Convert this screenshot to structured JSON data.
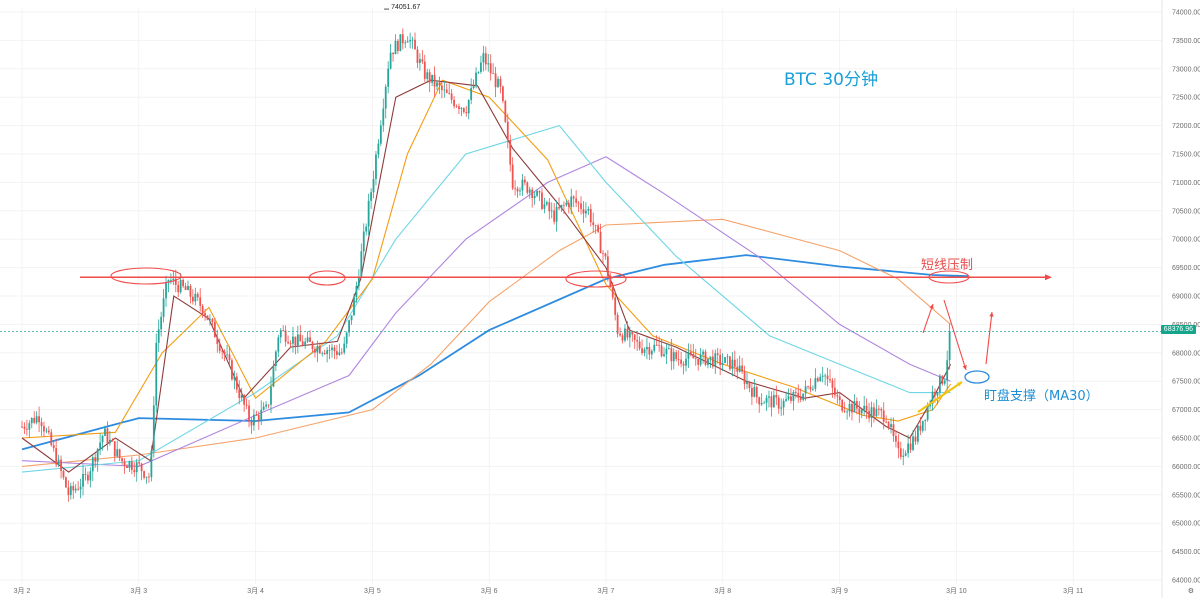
{
  "chart_data": {
    "type": "candlestick",
    "symbol_note": "BTC   30分钟",
    "x_ticks": [
      "3月 2",
      "3月 3",
      "3月 4",
      "3月 5",
      "3月 6",
      "3月 7",
      "3月 8",
      "3月 9",
      "3月 10",
      "3月 11"
    ],
    "y_ticks": [
      64000,
      64500,
      65000,
      65500,
      66000,
      66500,
      67000,
      67500,
      68000,
      68500,
      69000,
      69500,
      70000,
      70500,
      71000,
      71500,
      72000,
      72500,
      73000,
      73500,
      74000
    ],
    "y_tick_labels": [
      "64000.00",
      "64500.00",
      "65000.00",
      "65500.00",
      "66000.00",
      "66500.00",
      "67000.00",
      "67500.00",
      "68000.00",
      "68500.00",
      "69000.00",
      "69500.00",
      "70000.00",
      "70500.00",
      "71000.00",
      "71500.00",
      "72000.00",
      "72500.00",
      "73000.00",
      "73500.00",
      "74000.00"
    ],
    "ylim": [
      63950,
      74150
    ],
    "xlim": [
      0,
      10
    ],
    "high_marker": {
      "label": "74051.67",
      "x": 3.1,
      "y": 74051.67
    },
    "last_price": {
      "label": "68376.96",
      "y": 68376.96
    },
    "resistance": {
      "y": 69330,
      "label": "短线压制"
    },
    "support_label": "盯盘支撑（MA30）",
    "colors": {
      "up": "#26a69a",
      "down": "#ef5350",
      "ma_dark": "#8e3a3a",
      "ma_orange": "#f39c12",
      "ma_cyan": "#6fd6e6",
      "ma_purple": "#b185e0",
      "ma_peach": "#f5a36b",
      "ma_blue": "#2e8ce0",
      "resistance": "#f04a4a",
      "support_arrow": "#f2c40f",
      "support_circle": "#2e8ce0"
    },
    "price_path": [
      [
        0.0,
        66700
      ],
      [
        0.15,
        66900
      ],
      [
        0.3,
        66100
      ],
      [
        0.4,
        65500
      ],
      [
        0.55,
        65800
      ],
      [
        0.7,
        66600
      ],
      [
        0.85,
        66100
      ],
      [
        1.0,
        66000
      ],
      [
        1.1,
        65800
      ],
      [
        1.15,
        68200
      ],
      [
        1.25,
        69300
      ],
      [
        1.4,
        69100
      ],
      [
        1.55,
        68800
      ],
      [
        1.75,
        67900
      ],
      [
        1.95,
        66800
      ],
      [
        2.1,
        67000
      ],
      [
        2.2,
        68400
      ],
      [
        2.35,
        68200
      ],
      [
        2.55,
        68100
      ],
      [
        2.75,
        68000
      ],
      [
        2.85,
        69000
      ],
      [
        3.0,
        71000
      ],
      [
        3.15,
        73300
      ],
      [
        3.3,
        73600
      ],
      [
        3.45,
        72900
      ],
      [
        3.65,
        72500
      ],
      [
        3.8,
        72300
      ],
      [
        3.95,
        73200
      ],
      [
        4.1,
        72600
      ],
      [
        4.2,
        71000
      ],
      [
        4.35,
        70900
      ],
      [
        4.55,
        70400
      ],
      [
        4.7,
        70700
      ],
      [
        4.85,
        70500
      ],
      [
        5.0,
        69600
      ],
      [
        5.1,
        68400
      ],
      [
        5.3,
        68100
      ],
      [
        5.45,
        68100
      ],
      [
        5.6,
        67900
      ],
      [
        5.85,
        67900
      ],
      [
        6.1,
        67800
      ],
      [
        6.3,
        67200
      ],
      [
        6.5,
        67100
      ],
      [
        6.7,
        67300
      ],
      [
        6.85,
        67700
      ],
      [
        7.0,
        67100
      ],
      [
        7.2,
        67000
      ],
      [
        7.4,
        66900
      ],
      [
        7.5,
        66200
      ],
      [
        7.65,
        66500
      ],
      [
        7.8,
        67300
      ],
      [
        7.9,
        67600
      ],
      [
        7.95,
        68377
      ]
    ],
    "moving_averages": [
      {
        "color_key": "ma_blue",
        "points": [
          [
            0,
            66300
          ],
          [
            1.0,
            66850
          ],
          [
            2.0,
            66800
          ],
          [
            2.8,
            66950
          ],
          [
            3.4,
            67600
          ],
          [
            4.0,
            68400
          ],
          [
            5.0,
            69300
          ],
          [
            5.5,
            69550
          ],
          [
            6.2,
            69720
          ],
          [
            7.0,
            69520
          ],
          [
            7.8,
            69370
          ],
          [
            8.1,
            69350
          ]
        ]
      },
      {
        "color_key": "ma_peach",
        "points": [
          [
            0,
            66000
          ],
          [
            1.0,
            66200
          ],
          [
            2.0,
            66500
          ],
          [
            3.0,
            67000
          ],
          [
            3.5,
            67800
          ],
          [
            4.0,
            68900
          ],
          [
            4.6,
            69800
          ],
          [
            5.0,
            70250
          ],
          [
            6.0,
            70350
          ],
          [
            7.0,
            69800
          ],
          [
            7.5,
            69300
          ],
          [
            7.95,
            68500
          ]
        ]
      },
      {
        "color_key": "ma_purple",
        "points": [
          [
            0,
            66100
          ],
          [
            1.0,
            66000
          ],
          [
            2.0,
            66900
          ],
          [
            2.8,
            67600
          ],
          [
            3.2,
            68700
          ],
          [
            3.8,
            70000
          ],
          [
            4.5,
            71000
          ],
          [
            5.0,
            71450
          ],
          [
            5.5,
            70800
          ],
          [
            6.3,
            69700
          ],
          [
            7.0,
            68500
          ],
          [
            7.6,
            67800
          ],
          [
            7.95,
            67500
          ]
        ]
      },
      {
        "color_key": "ma_cyan",
        "points": [
          [
            0,
            65900
          ],
          [
            1.0,
            66100
          ],
          [
            2.0,
            67300
          ],
          [
            2.7,
            68300
          ],
          [
            3.2,
            70000
          ],
          [
            3.8,
            71500
          ],
          [
            4.6,
            72000
          ],
          [
            5.0,
            71000
          ],
          [
            5.6,
            69700
          ],
          [
            6.4,
            68300
          ],
          [
            7.0,
            67800
          ],
          [
            7.6,
            67300
          ],
          [
            7.95,
            67300
          ]
        ]
      },
      {
        "color_key": "ma_orange",
        "points": [
          [
            0,
            66500
          ],
          [
            0.8,
            66600
          ],
          [
            1.2,
            68000
          ],
          [
            1.6,
            68800
          ],
          [
            2.0,
            67200
          ],
          [
            2.6,
            68200
          ],
          [
            3.0,
            69300
          ],
          [
            3.3,
            71500
          ],
          [
            3.6,
            72800
          ],
          [
            4.0,
            72500
          ],
          [
            4.5,
            71400
          ],
          [
            5.0,
            69200
          ],
          [
            5.4,
            68300
          ],
          [
            6.0,
            67800
          ],
          [
            6.6,
            67400
          ],
          [
            7.2,
            66900
          ],
          [
            7.5,
            66800
          ],
          [
            7.8,
            67000
          ],
          [
            7.95,
            67450
          ]
        ]
      },
      {
        "color_key": "ma_dark",
        "points": [
          [
            0,
            66500
          ],
          [
            0.4,
            65900
          ],
          [
            0.8,
            66500
          ],
          [
            1.1,
            66100
          ],
          [
            1.3,
            69000
          ],
          [
            1.6,
            68600
          ],
          [
            1.9,
            67200
          ],
          [
            2.3,
            68100
          ],
          [
            2.7,
            68200
          ],
          [
            2.9,
            69300
          ],
          [
            3.2,
            72500
          ],
          [
            3.5,
            72800
          ],
          [
            3.9,
            72700
          ],
          [
            4.2,
            71600
          ],
          [
            4.6,
            70600
          ],
          [
            5.0,
            69500
          ],
          [
            5.2,
            68400
          ],
          [
            5.6,
            68100
          ],
          [
            6.2,
            67500
          ],
          [
            6.7,
            67200
          ],
          [
            7.0,
            67300
          ],
          [
            7.4,
            66700
          ],
          [
            7.6,
            66500
          ],
          [
            7.8,
            67200
          ],
          [
            7.95,
            67800
          ]
        ]
      }
    ]
  }
}
